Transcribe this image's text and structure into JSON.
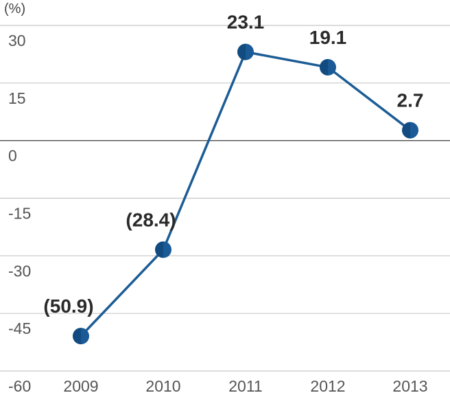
{
  "chart_data": {
    "type": "line",
    "unit_label": "(%)",
    "categories": [
      "2009",
      "2010",
      "2011",
      "2012",
      "2013"
    ],
    "values": [
      -50.9,
      -28.4,
      23.1,
      19.1,
      2.7
    ],
    "data_labels": [
      "(50.9)",
      "(28.4)",
      "23.1",
      "19.1",
      "2.7"
    ],
    "y_ticks": [
      "30",
      "15",
      "0",
      "-15",
      "-30",
      "-45",
      "-60"
    ],
    "y_tick_values": [
      30,
      15,
      0,
      -15,
      -30,
      -45,
      -60
    ],
    "ylim": [
      -60,
      30
    ],
    "grid": true,
    "colors": {
      "line": "#1c5c95",
      "marker": "#1a5a96",
      "grid": "#c8c8c8",
      "zero": "#555555"
    }
  }
}
